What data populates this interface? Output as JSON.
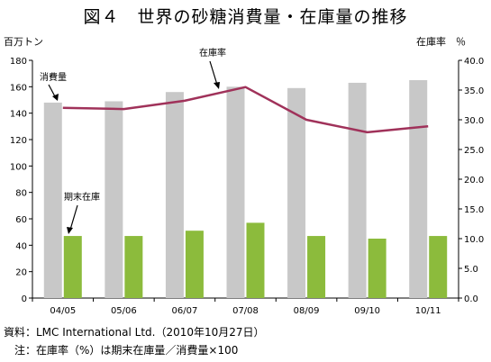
{
  "chart_data": {
    "type": "bar",
    "title": "図４　世界の砂糖消費量・在庫量の推移",
    "y_left_label": "百万トン",
    "y_right_label": "在庫率　％",
    "categories": [
      "04/05",
      "05/06",
      "06/07",
      "07/08",
      "08/09",
      "09/10",
      "10/11"
    ],
    "ylim_left": [
      0,
      180
    ],
    "yticks_left": [
      "0",
      "20",
      "40",
      "60",
      "80",
      "100",
      "120",
      "140",
      "160",
      "180"
    ],
    "ylim_right": [
      0,
      40
    ],
    "yticks_right": [
      "0.0",
      "5.0",
      "10.0",
      "15.0",
      "20.0",
      "25.0",
      "30.0",
      "35.0",
      "40.0"
    ],
    "grid": false,
    "series": [
      {
        "name": "消費量",
        "type": "bar",
        "axis": "left",
        "color": "#c8c8c8",
        "values": [
          148,
          149,
          156,
          160,
          159,
          163,
          165
        ]
      },
      {
        "name": "期末在庫",
        "type": "bar",
        "axis": "left",
        "color": "#8cbb3c",
        "values": [
          47,
          47,
          51,
          57,
          47,
          45,
          47
        ]
      },
      {
        "name": "在庫率",
        "type": "line",
        "axis": "right",
        "color": "#a0325a",
        "values": [
          32.0,
          31.8,
          33.2,
          35.5,
          30.0,
          27.9,
          28.9
        ]
      }
    ],
    "annotations": [
      "消費量",
      "期末在庫",
      "在庫率"
    ]
  },
  "footer": {
    "source": "資料：LMC International Ltd.（2010年10月27日）",
    "note": "注：在庫率（%）は期末在庫量／消費量×100"
  }
}
